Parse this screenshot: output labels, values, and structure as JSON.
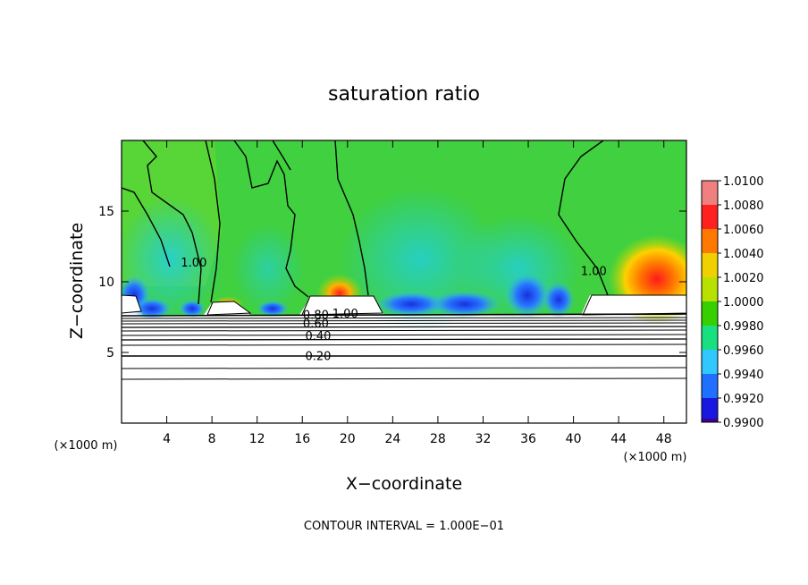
{
  "chart_data": {
    "type": "heatmap",
    "title": "saturation ratio",
    "xlabel": "X−coordinate",
    "ylabel": "Z−coordinate",
    "x_unit_left": "(×1000 m)",
    "x_unit_right": "(×1000 m)",
    "xlim": [
      0,
      50
    ],
    "ylim": [
      0,
      20
    ],
    "x_ticks": [
      4,
      8,
      12,
      16,
      20,
      24,
      28,
      32,
      36,
      40,
      44,
      48
    ],
    "y_ticks": [
      5,
      10,
      15
    ],
    "footer": "CONTOUR INTERVAL = 1.000E−01",
    "colorbar": {
      "levels": [
        "1.0100",
        "1.0080",
        "1.0060",
        "1.0040",
        "1.0020",
        "1.0000",
        "0.9980",
        "0.9960",
        "0.9940",
        "0.9920",
        "0.9900"
      ],
      "values": [
        1.01,
        1.008,
        1.006,
        1.004,
        1.002,
        1.0,
        0.998,
        0.996,
        0.994,
        0.992,
        0.99
      ],
      "band_colors": [
        "#f08080",
        "#ff2020",
        "#ff7800",
        "#f0d000",
        "#b8e000",
        "#36d000",
        "#18e080",
        "#30c8ff",
        "#2070ff",
        "#1818e0",
        "#400090"
      ]
    },
    "contour_labels": [
      {
        "text": "1.00",
        "x": 6.4,
        "y": 11.2
      },
      {
        "text": "1.00",
        "x": 41.8,
        "y": 10.6
      },
      {
        "text": "0.80",
        "x": 17.2,
        "y": 7.5
      },
      {
        "text": "1.00",
        "x": 19.8,
        "y": 7.6
      },
      {
        "text": "0.60",
        "x": 17.2,
        "y": 6.9
      },
      {
        "text": "0.40",
        "x": 17.4,
        "y": 6.0
      },
      {
        "text": "0.20",
        "x": 17.4,
        "y": 4.6
      }
    ]
  }
}
